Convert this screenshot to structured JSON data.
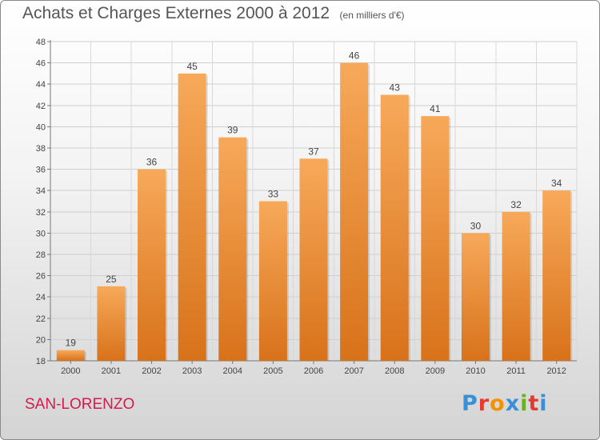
{
  "header": {
    "title": "Achats et Charges Externes 2000 à 2012",
    "subtitle": "(en milliers d'€)"
  },
  "footer": {
    "commune": "SAN-LORENZO",
    "brand": "Proxiti"
  },
  "colors": {
    "bar_top": "#f7a95a",
    "bar_bottom": "#d8721a",
    "commune_text": "#d61a4f",
    "brand_letters": [
      "#3a8fd6",
      "#e33b2f",
      "#f39200",
      "#3a8fd6",
      "#6ab023",
      "#e33b2f",
      "#3a8fd6"
    ]
  },
  "chart_data": {
    "type": "bar",
    "categories": [
      "2000",
      "2001",
      "2002",
      "2003",
      "2004",
      "2005",
      "2006",
      "2007",
      "2008",
      "2009",
      "2010",
      "2011",
      "2012"
    ],
    "values": [
      19,
      25,
      36,
      45,
      39,
      33,
      37,
      46,
      43,
      41,
      30,
      32,
      34
    ],
    "ylim": [
      18,
      48
    ],
    "yticks": [
      18,
      20,
      22,
      24,
      26,
      28,
      30,
      32,
      34,
      36,
      38,
      40,
      42,
      44,
      46,
      48
    ],
    "grid": true
  }
}
